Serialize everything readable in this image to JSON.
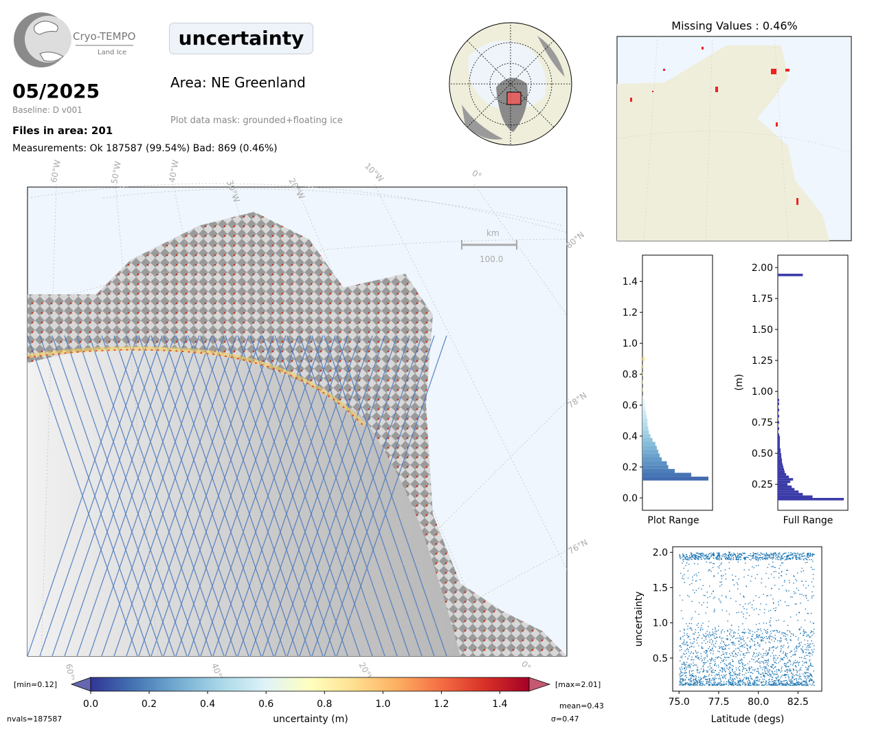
{
  "header": {
    "logo_text": "Cryo-TEMPO",
    "logo_subtext": "Land Ice",
    "date": "05/2025",
    "baseline": "Baseline: D v001",
    "files": "Files in area: 201",
    "measurements": "Measurements: Ok 187587 (99.54%) Bad: 869 (0.46%)",
    "parameter": "uncertainty",
    "area": "Area: NE Greenland",
    "mask": "Plot data mask: grounded+floating ice"
  },
  "main_map": {
    "lon_labels": [
      "60°W",
      "50°W",
      "40°W",
      "30°W",
      "20°W",
      "10°W",
      "0°"
    ],
    "lat_labels": [
      "80°N",
      "78°N",
      "76°N"
    ],
    "bottom_labels": [
      "60°W",
      "40°W",
      "20°W",
      "0°"
    ],
    "scalebar_unit": "km",
    "scalebar_value": "100.0"
  },
  "missing": {
    "title": "Missing Values : 0.46%"
  },
  "colorbar": {
    "label": "uncertainty (m)",
    "min_label": "[min=0.12]",
    "max_label": "[max=2.01]",
    "ticks": [
      "0.0",
      "0.2",
      "0.4",
      "0.6",
      "0.8",
      "1.0",
      "1.2",
      "1.4"
    ],
    "nvals": "nvals=187587",
    "mean": "mean=0.43",
    "sigma": "σ=0.47",
    "cmap_colors": [
      "#313695",
      "#4575b4",
      "#74add1",
      "#abd9e9",
      "#e0f3f8",
      "#ffffbf",
      "#fee090",
      "#fdae61",
      "#f46d43",
      "#d73027",
      "#a50026"
    ]
  },
  "chart_data": [
    {
      "type": "bar",
      "orientation": "horizontal",
      "xlabel": "Plot Range",
      "ylabel": "",
      "ylim": [
        -0.08,
        1.57
      ],
      "yticks": [
        "0.0",
        "0.2",
        "0.4",
        "0.6",
        "0.8",
        "1.0",
        "1.2",
        "1.4"
      ],
      "bin_width": 0.025,
      "bins": [
        0.125,
        0.15,
        0.175,
        0.2,
        0.225,
        0.25,
        0.275,
        0.3,
        0.325,
        0.35,
        0.375,
        0.4,
        0.425,
        0.45,
        0.475,
        0.5,
        0.525,
        0.55,
        0.575,
        0.6,
        0.625,
        0.65,
        0.7,
        0.75,
        0.8,
        0.85,
        0.9
      ],
      "values": [
        92,
        68,
        45,
        36,
        34,
        27,
        24,
        22,
        20,
        18,
        14,
        11,
        9,
        8,
        7,
        7,
        6,
        5,
        4,
        4,
        3,
        2,
        2,
        2,
        2,
        2,
        3
      ]
    },
    {
      "type": "bar",
      "orientation": "horizontal",
      "xlabel": "Full Range",
      "ylabel": "(m)",
      "ylim": [
        0.04,
        2.1
      ],
      "yticks": [
        "0.25",
        "0.50",
        "0.75",
        "1.00",
        "1.25",
        "1.50",
        "1.75",
        "2.00"
      ],
      "bin_width": 0.02,
      "bins": [
        0.13,
        0.15,
        0.17,
        0.19,
        0.21,
        0.23,
        0.25,
        0.27,
        0.29,
        0.31,
        0.33,
        0.35,
        0.37,
        0.39,
        0.41,
        0.43,
        0.45,
        0.47,
        0.49,
        0.51,
        0.53,
        0.55,
        0.57,
        0.59,
        0.61,
        0.63,
        0.65,
        0.7,
        0.75,
        0.8,
        0.85,
        0.9,
        0.93,
        1.94
      ],
      "values": [
        95,
        50,
        36,
        30,
        24,
        20,
        14,
        18,
        22,
        16,
        12,
        10,
        9,
        8,
        7,
        6,
        6,
        5,
        5,
        4,
        4,
        3,
        3,
        3,
        3,
        3,
        2,
        2,
        2,
        2,
        2,
        2,
        2,
        36
      ]
    },
    {
      "type": "scatter",
      "xlabel": "Latitude (degs)",
      "ylabel": "uncertainty",
      "xlim": [
        74.6,
        84.0
      ],
      "ylim": [
        0.03,
        2.08
      ],
      "xticks": [
        "75.0",
        "77.5",
        "80.0",
        "82.5"
      ],
      "yticks": [
        "0.5",
        "1.0",
        "1.5",
        "2.0"
      ],
      "series_color": "#1f77b4",
      "note_range": {
        "x": [
          75.0,
          83.5
        ],
        "y": [
          0.12,
          2.01
        ]
      }
    }
  ]
}
